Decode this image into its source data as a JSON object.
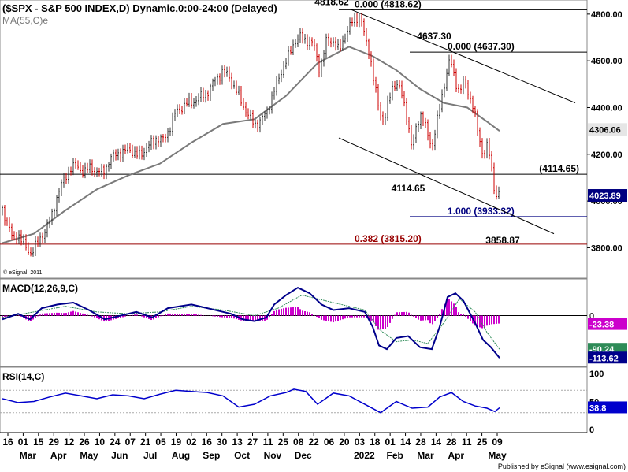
{
  "header": {
    "title": "($SPX - S&P 500 INDEX,D) Dynamic,0:00-24:00 (Delayed)",
    "ma_label": "MA(55,C)e",
    "copyright": "© eSignal, 2011"
  },
  "footer": {
    "published": "Published by eSignal (www.esignal.com)"
  },
  "colors": {
    "background": "#ffffff",
    "up_bar": "#333333",
    "down_bar": "#cc0000",
    "ma_line": "#7a7a7a",
    "fib_support": "#990000",
    "fib_target": "#000080",
    "macd_line": "#00008b",
    "signal_line": "#2e8b57",
    "histogram": "#cc00cc",
    "rsi_line": "#0000cc"
  },
  "chart_data": [
    {
      "type": "candlestick",
      "panel": "price",
      "ylim": [
        3680,
        4840
      ],
      "y_ticks": [
        "4800.00",
        "4600.00",
        "4400.00",
        "4200.00",
        "4000.00",
        "3800.00"
      ],
      "y_tick_values": [
        4800,
        4600,
        4400,
        4200,
        4000,
        3800
      ],
      "price_path": [
        [
          0,
          3960
        ],
        [
          8,
          3900
        ],
        [
          13,
          3830
        ],
        [
          20,
          3860
        ],
        [
          25,
          3830
        ],
        [
          31,
          3790
        ],
        [
          36,
          3780
        ],
        [
          45,
          3820
        ],
        [
          55,
          3880
        ],
        [
          63,
          3940
        ],
        [
          70,
          4030
        ],
        [
          78,
          4090
        ],
        [
          86,
          4140
        ],
        [
          95,
          4150
        ],
        [
          104,
          4120
        ],
        [
          112,
          4150
        ],
        [
          120,
          4120
        ],
        [
          128,
          4130
        ],
        [
          136,
          4170
        ],
        [
          145,
          4210
        ],
        [
          152,
          4200
        ],
        [
          161,
          4230
        ],
        [
          170,
          4190
        ],
        [
          178,
          4210
        ],
        [
          187,
          4240
        ],
        [
          195,
          4270
        ],
        [
          204,
          4260
        ],
        [
          212,
          4310
        ],
        [
          220,
          4380
        ],
        [
          228,
          4400
        ],
        [
          236,
          4420
        ],
        [
          245,
          4430
        ],
        [
          253,
          4450
        ],
        [
          262,
          4470
        ],
        [
          270,
          4520
        ],
        [
          279,
          4550
        ],
        [
          287,
          4540
        ],
        [
          295,
          4480
        ],
        [
          303,
          4430
        ],
        [
          311,
          4370
        ],
        [
          320,
          4330
        ],
        [
          328,
          4340
        ],
        [
          336,
          4390
        ],
        [
          345,
          4470
        ],
        [
          353,
          4550
        ],
        [
          361,
          4600
        ],
        [
          370,
          4680
        ],
        [
          378,
          4700
        ],
        [
          386,
          4690
        ],
        [
          395,
          4670
        ],
        [
          403,
          4560
        ],
        [
          411,
          4680
        ],
        [
          419,
          4690
        ],
        [
          427,
          4640
        ],
        [
          435,
          4710
        ],
        [
          443,
          4760
        ],
        [
          449,
          4790
        ],
        [
          455,
          4780
        ],
        [
          460,
          4700
        ],
        [
          466,
          4640
        ],
        [
          472,
          4500
        ],
        [
          478,
          4390
        ],
        [
          484,
          4340
        ],
        [
          490,
          4420
        ],
        [
          496,
          4500
        ],
        [
          502,
          4500
        ],
        [
          508,
          4440
        ],
        [
          514,
          4350
        ],
        [
          520,
          4220
        ],
        [
          526,
          4330
        ],
        [
          532,
          4380
        ],
        [
          538,
          4300
        ],
        [
          545,
          4230
        ],
        [
          551,
          4330
        ],
        [
          557,
          4430
        ],
        [
          562,
          4520
        ],
        [
          568,
          4610
        ],
        [
          574,
          4520
        ],
        [
          580,
          4470
        ],
        [
          586,
          4510
        ],
        [
          592,
          4460
        ],
        [
          598,
          4400
        ],
        [
          604,
          4280
        ],
        [
          610,
          4200
        ],
        [
          616,
          4240
        ],
        [
          621,
          4130
        ],
        [
          626,
          4020
        ],
        [
          631,
          4040
        ]
      ],
      "moving_average": {
        "name": "MA(55,C)e",
        "values": [
          [
            0,
            3820
          ],
          [
            40,
            3860
          ],
          [
            80,
            3960
          ],
          [
            120,
            4050
          ],
          [
            160,
            4110
          ],
          [
            200,
            4160
          ],
          [
            240,
            4250
          ],
          [
            280,
            4330
          ],
          [
            320,
            4350
          ],
          [
            360,
            4450
          ],
          [
            400,
            4590
          ],
          [
            440,
            4660
          ],
          [
            470,
            4620
          ],
          [
            500,
            4560
          ],
          [
            530,
            4480
          ],
          [
            560,
            4420
          ],
          [
            590,
            4400
          ],
          [
            615,
            4340
          ],
          [
            631,
            4300
          ]
        ]
      },
      "current_value": "4306.06",
      "last_price": "4023.89",
      "horizontal_levels": [
        {
          "value": 4114.65,
          "label": "(4114.65)",
          "color": "#000000"
        },
        {
          "value": 4637.3,
          "label": "0.000 (4637.30)",
          "color": "#000000"
        },
        {
          "value": 4818.62,
          "label": "0.000 (4818.62)",
          "color": "#000000"
        },
        {
          "value": 3933.32,
          "label": "1.000 (3933.32)",
          "color": "#000080"
        },
        {
          "value": 3815.2,
          "label": "0.382 (3815.20)",
          "color": "#990000"
        }
      ],
      "annotations": [
        {
          "text": "4818.62",
          "x": 443,
          "y": 4818.62
        },
        {
          "text": "4637.30",
          "x": 568,
          "y": 4637.3
        },
        {
          "text": "4114.65",
          "x": 520,
          "y": 4114.65
        },
        {
          "text": "3858.87",
          "x": 625,
          "y": 3858.87
        }
      ],
      "trend_channel": {
        "upper": [
          [
            443,
            4818.62
          ],
          [
            727,
            4420
          ]
        ],
        "lower": [
          [
            427,
            4270
          ],
          [
            700,
            3860
          ]
        ]
      }
    },
    {
      "type": "line",
      "panel": "macd",
      "title": "MACD(12,26,9,C)",
      "ylim": [
        -130,
        90
      ],
      "y_ticks": [
        "0"
      ],
      "y_tick_values": [
        0
      ],
      "macd_line": [
        [
          0,
          -10
        ],
        [
          20,
          5
        ],
        [
          35,
          -10
        ],
        [
          50,
          20
        ],
        [
          70,
          30
        ],
        [
          90,
          35
        ],
        [
          110,
          15
        ],
        [
          130,
          -10
        ],
        [
          150,
          0
        ],
        [
          170,
          10
        ],
        [
          190,
          -5
        ],
        [
          210,
          20
        ],
        [
          240,
          30
        ],
        [
          270,
          15
        ],
        [
          290,
          5
        ],
        [
          305,
          -10
        ],
        [
          320,
          -15
        ],
        [
          335,
          -5
        ],
        [
          345,
          30
        ],
        [
          360,
          55
        ],
        [
          375,
          75
        ],
        [
          390,
          60
        ],
        [
          405,
          30
        ],
        [
          420,
          15
        ],
        [
          440,
          20
        ],
        [
          460,
          10
        ],
        [
          470,
          -30
        ],
        [
          478,
          -80
        ],
        [
          488,
          -90
        ],
        [
          500,
          -60
        ],
        [
          515,
          -55
        ],
        [
          530,
          -85
        ],
        [
          545,
          -90
        ],
        [
          555,
          -30
        ],
        [
          565,
          50
        ],
        [
          575,
          60
        ],
        [
          585,
          40
        ],
        [
          600,
          -20
        ],
        [
          610,
          -65
        ],
        [
          620,
          -85
        ],
        [
          631,
          -113.62
        ]
      ],
      "signal_line": [
        [
          0,
          -5
        ],
        [
          40,
          10
        ],
        [
          80,
          25
        ],
        [
          120,
          10
        ],
        [
          160,
          5
        ],
        [
          200,
          10
        ],
        [
          240,
          25
        ],
        [
          280,
          15
        ],
        [
          320,
          0
        ],
        [
          350,
          20
        ],
        [
          380,
          55
        ],
        [
          410,
          40
        ],
        [
          440,
          25
        ],
        [
          460,
          15
        ],
        [
          480,
          -40
        ],
        [
          500,
          -70
        ],
        [
          520,
          -65
        ],
        [
          540,
          -75
        ],
        [
          560,
          -20
        ],
        [
          580,
          45
        ],
        [
          600,
          10
        ],
        [
          615,
          -45
        ],
        [
          631,
          -90.24
        ]
      ],
      "histogram_hint": "magenta bars around zero",
      "values_shown": [
        "-23.38",
        "-90.24",
        "-113.62"
      ]
    },
    {
      "type": "line",
      "panel": "rsi",
      "title": "RSI(14,C)",
      "ylim": [
        0,
        100
      ],
      "y_ticks": [
        "100",
        "50",
        "0"
      ],
      "y_tick_values": [
        100,
        50,
        0
      ],
      "series": [
        {
          "values": [
            [
              0,
              55
            ],
            [
              20,
              48
            ],
            [
              40,
              50
            ],
            [
              60,
              58
            ],
            [
              80,
              65
            ],
            [
              100,
              60
            ],
            [
              120,
              55
            ],
            [
              140,
              62
            ],
            [
              160,
              60
            ],
            [
              180,
              55
            ],
            [
              200,
              63
            ],
            [
              220,
              70
            ],
            [
              240,
              68
            ],
            [
              260,
              66
            ],
            [
              280,
              60
            ],
            [
              300,
              40
            ],
            [
              320,
              45
            ],
            [
              340,
              60
            ],
            [
              360,
              66
            ],
            [
              370,
              72
            ],
            [
              385,
              68
            ],
            [
              400,
              45
            ],
            [
              420,
              65
            ],
            [
              440,
              60
            ],
            [
              460,
              45
            ],
            [
              480,
              30
            ],
            [
              500,
              50
            ],
            [
              520,
              38
            ],
            [
              540,
              40
            ],
            [
              555,
              58
            ],
            [
              570,
              66
            ],
            [
              585,
              50
            ],
            [
              600,
              42
            ],
            [
              615,
              38
            ],
            [
              625,
              32
            ],
            [
              631,
              38.8
            ]
          ]
        }
      ],
      "current_value": "38.8"
    }
  ],
  "x_axis": {
    "days": [
      "16",
      "01",
      "15",
      "29",
      "12",
      "26",
      "10",
      "24",
      "07",
      "21",
      "05",
      "19",
      "02",
      "16",
      "30",
      "13",
      "27",
      "11",
      "25",
      "08",
      "22",
      "06",
      "20",
      "03",
      "18",
      "01",
      "14",
      "28",
      "14",
      "28",
      "11",
      "25",
      "09"
    ],
    "months": [
      "Mar",
      "Apr",
      "May",
      "Jun",
      "Jul",
      "Aug",
      "Sep",
      "Oct",
      "Nov",
      "Dec",
      "2022",
      "Feb",
      "Mar",
      "Apr",
      "May"
    ]
  }
}
